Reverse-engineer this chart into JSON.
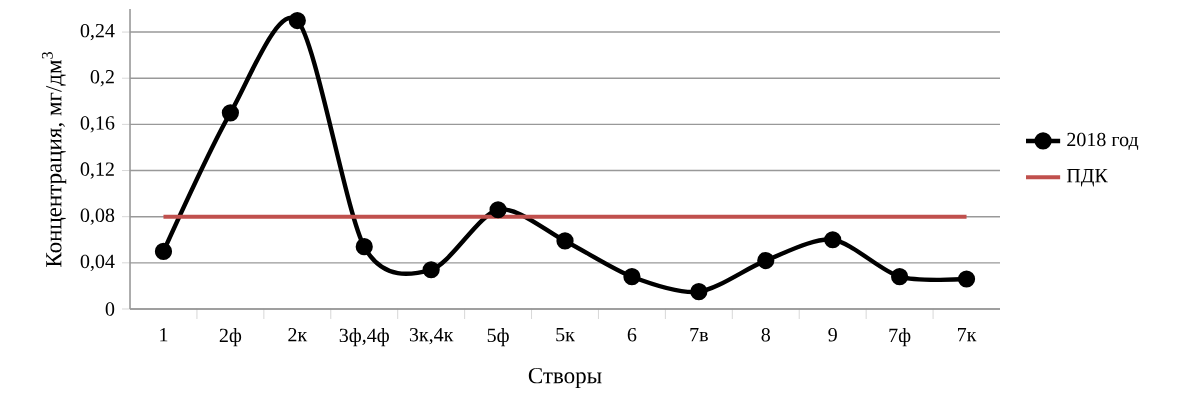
{
  "chart_data": {
    "type": "line",
    "xlabel": "Створы",
    "ylabel": "Концентрация, мг/дм$^{3}$",
    "categories": [
      "1",
      "2ф",
      "2к",
      "3ф,4ф",
      "3к,4к",
      "5ф",
      "5к",
      "6",
      "7в",
      "8",
      "9",
      "7ф",
      "7к"
    ],
    "series": [
      {
        "name": "2018 год",
        "color": "#000000",
        "marker": "circle",
        "values": [
          0.05,
          0.17,
          0.25,
          0.054,
          0.034,
          0.086,
          0.059,
          0.028,
          0.015,
          0.042,
          0.06,
          0.028,
          0.026
        ]
      },
      {
        "name": "ПДК",
        "color": "#c0504d",
        "marker": "none",
        "values": [
          0.08,
          0.08,
          0.08,
          0.08,
          0.08,
          0.08,
          0.08,
          0.08,
          0.08,
          0.08,
          0.08,
          0.08,
          0.08
        ]
      }
    ],
    "ylim": [
      0,
      0.26
    ],
    "yticks": [
      {
        "value": 0,
        "label": "0"
      },
      {
        "value": 0.04,
        "label": "0,04"
      },
      {
        "value": 0.08,
        "label": "0,08"
      },
      {
        "value": 0.12,
        "label": "0,12"
      },
      {
        "value": 0.16,
        "label": "0,16"
      },
      {
        "value": 0.2,
        "label": "0,2"
      },
      {
        "value": 0.24,
        "label": "0,24"
      }
    ],
    "grid": "y",
    "legend": "right"
  }
}
